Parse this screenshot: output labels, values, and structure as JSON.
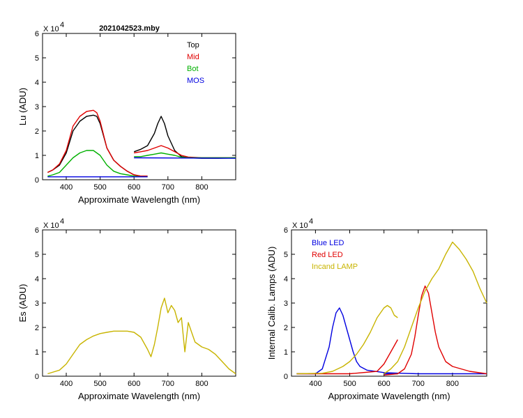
{
  "chart_data": [
    {
      "id": "lu",
      "type": "line",
      "title": "2021042523.mby",
      "xlabel": "Approximate Wavelength (nm)",
      "ylabel": "Lu (ADU)",
      "exponent_label": "X 10",
      "exponent_power": "4",
      "xlim": [
        330,
        900
      ],
      "ylim": [
        0,
        6
      ],
      "xticks": [
        "400",
        "500",
        "600",
        "700",
        "800"
      ],
      "yticks": [
        "0",
        "1",
        "2",
        "3",
        "4",
        "5",
        "6"
      ],
      "legend_position": "top-right",
      "legend": [
        {
          "label": "Top",
          "color": "#000000"
        },
        {
          "label": "Mid",
          "color": "#e00000"
        },
        {
          "label": "Bot",
          "color": "#00b000"
        },
        {
          "label": "MOS",
          "color": "#0000e0"
        }
      ],
      "series": [
        {
          "name": "Top",
          "color": "#000000",
          "x": [
            345,
            360,
            380,
            400,
            420,
            440,
            460,
            480,
            490,
            500,
            520,
            540,
            560,
            580,
            600,
            620,
            640
          ],
          "y": [
            0.3,
            0.4,
            0.6,
            1.1,
            2.0,
            2.4,
            2.6,
            2.65,
            2.6,
            2.3,
            1.3,
            0.8,
            0.55,
            0.35,
            0.2,
            0.15,
            0.15
          ]
        },
        {
          "name": "Top2",
          "color": "#000000",
          "x": [
            600,
            620,
            640,
            660,
            670,
            680,
            690,
            700,
            720,
            740,
            760,
            800,
            850,
            900
          ],
          "y": [
            1.15,
            1.25,
            1.4,
            1.9,
            2.3,
            2.6,
            2.3,
            1.8,
            1.2,
            0.95,
            0.9,
            0.88,
            0.88,
            0.9
          ]
        },
        {
          "name": "Mid",
          "color": "#e00000",
          "x": [
            345,
            360,
            380,
            400,
            420,
            440,
            460,
            480,
            490,
            500,
            520,
            540,
            560,
            580,
            600,
            620,
            640
          ],
          "y": [
            0.3,
            0.4,
            0.65,
            1.2,
            2.2,
            2.6,
            2.8,
            2.85,
            2.75,
            2.4,
            1.3,
            0.8,
            0.55,
            0.35,
            0.2,
            0.15,
            0.15
          ]
        },
        {
          "name": "Mid2",
          "color": "#e00000",
          "x": [
            600,
            620,
            640,
            660,
            680,
            700,
            720,
            740,
            760,
            800,
            850,
            900
          ],
          "y": [
            1.1,
            1.15,
            1.2,
            1.3,
            1.4,
            1.3,
            1.15,
            1.0,
            0.93,
            0.9,
            0.9,
            0.9
          ]
        },
        {
          "name": "Bot",
          "color": "#00b000",
          "x": [
            345,
            360,
            380,
            400,
            420,
            440,
            460,
            480,
            500,
            520,
            540,
            560,
            580,
            600,
            620,
            640
          ],
          "y": [
            0.15,
            0.2,
            0.3,
            0.6,
            0.9,
            1.1,
            1.2,
            1.2,
            1.0,
            0.6,
            0.35,
            0.25,
            0.2,
            0.15,
            0.12,
            0.12
          ]
        },
        {
          "name": "Bot2",
          "color": "#00b000",
          "x": [
            600,
            620,
            640,
            660,
            680,
            700,
            720,
            740,
            760,
            800,
            850,
            900
          ],
          "y": [
            0.95,
            0.95,
            1.0,
            1.05,
            1.1,
            1.05,
            1.0,
            0.92,
            0.9,
            0.9,
            0.9,
            0.9
          ]
        },
        {
          "name": "MOS",
          "color": "#0000e0",
          "x": [
            345,
            640
          ],
          "y": [
            0.12,
            0.12
          ]
        },
        {
          "name": "MOS2",
          "color": "#0000e0",
          "x": [
            600,
            900
          ],
          "y": [
            0.9,
            0.88
          ]
        }
      ]
    },
    {
      "id": "es",
      "type": "line",
      "title": "",
      "xlabel": "Approximate Wavelength (nm)",
      "ylabel": "Es  (ADU)",
      "exponent_label": "X 10",
      "exponent_power": "4",
      "xlim": [
        330,
        900
      ],
      "ylim": [
        0,
        6
      ],
      "xticks": [
        "400",
        "500",
        "600",
        "700",
        "800"
      ],
      "yticks": [
        "0",
        "1",
        "2",
        "3",
        "4",
        "5",
        "6"
      ],
      "legend": [],
      "series": [
        {
          "name": "Es",
          "color": "#c8b400",
          "x": [
            345,
            380,
            400,
            420,
            440,
            460,
            480,
            500,
            520,
            540,
            560,
            580,
            600,
            620,
            640,
            650,
            660,
            670,
            680,
            690,
            700,
            710,
            720,
            730,
            740,
            750,
            760,
            770,
            780,
            800,
            820,
            840,
            860,
            880,
            900
          ],
          "y": [
            0.1,
            0.25,
            0.5,
            0.9,
            1.3,
            1.5,
            1.65,
            1.75,
            1.8,
            1.85,
            1.85,
            1.85,
            1.8,
            1.6,
            1.1,
            0.8,
            1.3,
            2.0,
            2.8,
            3.2,
            2.6,
            2.9,
            2.7,
            2.2,
            2.4,
            1.0,
            2.2,
            1.8,
            1.4,
            1.2,
            1.1,
            0.9,
            0.6,
            0.3,
            0.1
          ]
        }
      ]
    },
    {
      "id": "lamps",
      "type": "line",
      "title": "",
      "xlabel": "Approximate Wavelength (nm)",
      "ylabel": "Internal Calib. Lamps  (ADU)",
      "exponent_label": "X 10",
      "exponent_power": "4",
      "xlim": [
        330,
        900
      ],
      "ylim": [
        0,
        6
      ],
      "xticks": [
        "400",
        "500",
        "600",
        "700",
        "800"
      ],
      "yticks": [
        "0",
        "1",
        "2",
        "3",
        "4",
        "5",
        "6"
      ],
      "legend_position": "top-left",
      "legend": [
        {
          "label": "Blue LED",
          "color": "#0000e0"
        },
        {
          "label": "Red LED",
          "color": "#e00000"
        },
        {
          "label": "Incand LAMP",
          "color": "#c8b400"
        }
      ],
      "series": [
        {
          "name": "Blue LED",
          "color": "#0000e0",
          "x": [
            345,
            400,
            420,
            440,
            450,
            460,
            470,
            480,
            490,
            500,
            510,
            520,
            530,
            550,
            600,
            650,
            700,
            800,
            900
          ],
          "y": [
            0.1,
            0.1,
            0.3,
            1.2,
            2.0,
            2.6,
            2.8,
            2.5,
            2.0,
            1.5,
            1.0,
            0.6,
            0.4,
            0.25,
            0.15,
            0.12,
            0.1,
            0.1,
            0.1
          ]
        },
        {
          "name": "Blue LED tail",
          "color": "#0000e0",
          "x": [
            600,
            640
          ],
          "y": [
            0.1,
            0.1
          ]
        },
        {
          "name": "Red LED",
          "color": "#e00000",
          "x": [
            345,
            500,
            580,
            600,
            620,
            640
          ],
          "y": [
            0.1,
            0.1,
            0.2,
            0.5,
            1.0,
            1.5
          ]
        },
        {
          "name": "Red LED2",
          "color": "#e00000",
          "x": [
            600,
            640,
            660,
            680,
            690,
            700,
            710,
            720,
            730,
            740,
            750,
            760,
            780,
            800,
            850,
            900
          ],
          "y": [
            0.05,
            0.1,
            0.3,
            0.9,
            1.6,
            2.5,
            3.3,
            3.7,
            3.4,
            2.6,
            1.8,
            1.2,
            0.6,
            0.4,
            0.2,
            0.1
          ]
        },
        {
          "name": "Incand LAMP",
          "color": "#c8b400",
          "x": [
            345,
            420,
            450,
            480,
            500,
            520,
            540,
            560,
            580,
            600,
            610,
            620,
            630,
            640
          ],
          "y": [
            0.1,
            0.12,
            0.2,
            0.4,
            0.6,
            0.9,
            1.3,
            1.8,
            2.4,
            2.8,
            2.9,
            2.8,
            2.5,
            2.4
          ]
        },
        {
          "name": "Incand LAMP2",
          "color": "#c8b400",
          "x": [
            600,
            620,
            640,
            660,
            680,
            700,
            720,
            740,
            760,
            780,
            800,
            820,
            840,
            860,
            880,
            900
          ],
          "y": [
            0.1,
            0.3,
            0.6,
            1.2,
            2.0,
            2.8,
            3.5,
            4.0,
            4.4,
            5.0,
            5.5,
            5.2,
            4.8,
            4.3,
            3.6,
            3.0
          ]
        }
      ]
    }
  ]
}
